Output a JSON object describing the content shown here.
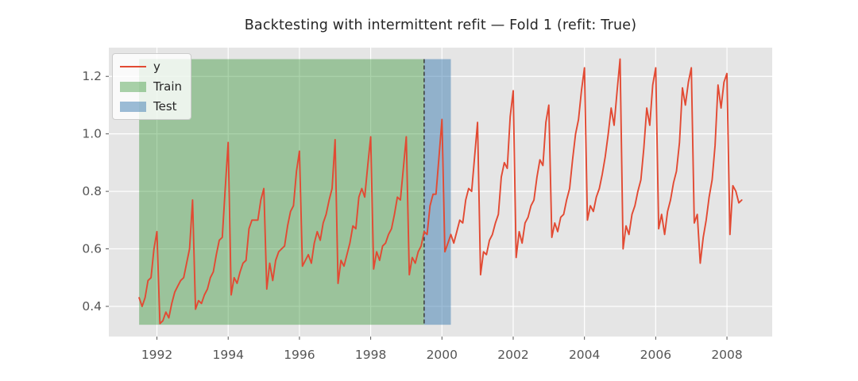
{
  "figure": {
    "title": "Backtesting with intermittent refit — Fold 1 (refit: True)"
  },
  "colors": {
    "axes_bg": "#e5e5e5",
    "grid": "#ffffff",
    "tick": "#555555",
    "tick_label": "#555555",
    "title": "#262626",
    "series_line": "#E24A33",
    "train_fill": "rgba(34,139,34,0.38)",
    "test_fill": "rgba(70,130,180,0.53)",
    "refit_line": "#3a3a3a",
    "legend_bg": "rgba(255,255,255,0.8)",
    "legend_border": "#cccccc"
  },
  "legend": {
    "items": [
      {
        "label": "y",
        "swatch": "line",
        "color": "#E24A33"
      },
      {
        "label": "Train",
        "swatch": "patch",
        "color": "rgba(34,139,34,0.38)"
      },
      {
        "label": "Test",
        "swatch": "patch",
        "color": "rgba(70,130,180,0.53)"
      }
    ]
  },
  "chart_data": {
    "type": "line",
    "title": "Backtesting with intermittent refit — Fold 1 (refit: True)",
    "xlabel": "",
    "ylabel": "",
    "grid": true,
    "legend_position": "upper-left",
    "xlim": [
      1990.65,
      2009.27
    ],
    "ylim": [
      0.295,
      1.3
    ],
    "xticks": [
      1992,
      1994,
      1996,
      1998,
      2000,
      2002,
      2004,
      2006,
      2008
    ],
    "yticks": [
      0.4,
      0.6,
      0.8,
      1.0,
      1.2
    ],
    "spans": [
      {
        "name": "Train",
        "x0": 1991.5,
        "x1": 1999.5,
        "y0": 0.336,
        "y1": 1.26
      },
      {
        "name": "Test",
        "x0": 1999.5,
        "x1": 2000.25,
        "y0": 0.336,
        "y1": 1.26
      }
    ],
    "refit_line_x": 1999.5,
    "series": [
      {
        "name": "y",
        "x_start_decimal_year": 1991.5,
        "x_step_years": 0.0833333,
        "values": [
          0.43,
          0.4,
          0.43,
          0.49,
          0.5,
          0.6,
          0.66,
          0.34,
          0.35,
          0.38,
          0.36,
          0.41,
          0.45,
          0.47,
          0.49,
          0.5,
          0.55,
          0.6,
          0.77,
          0.39,
          0.42,
          0.41,
          0.44,
          0.46,
          0.5,
          0.52,
          0.58,
          0.63,
          0.64,
          0.81,
          0.97,
          0.44,
          0.5,
          0.48,
          0.52,
          0.55,
          0.56,
          0.67,
          0.7,
          0.7,
          0.7,
          0.77,
          0.81,
          0.46,
          0.55,
          0.49,
          0.56,
          0.59,
          0.6,
          0.61,
          0.68,
          0.73,
          0.75,
          0.87,
          0.94,
          0.54,
          0.56,
          0.58,
          0.55,
          0.62,
          0.66,
          0.63,
          0.69,
          0.72,
          0.77,
          0.81,
          0.98,
          0.48,
          0.56,
          0.54,
          0.58,
          0.62,
          0.68,
          0.67,
          0.78,
          0.81,
          0.78,
          0.89,
          0.99,
          0.53,
          0.59,
          0.56,
          0.61,
          0.62,
          0.65,
          0.67,
          0.72,
          0.78,
          0.77,
          0.88,
          0.99,
          0.51,
          0.57,
          0.55,
          0.59,
          0.61,
          0.66,
          0.65,
          0.75,
          0.79,
          0.79,
          0.92,
          1.05,
          0.59,
          0.62,
          0.65,
          0.62,
          0.66,
          0.7,
          0.69,
          0.77,
          0.81,
          0.8,
          0.92,
          1.04,
          0.51,
          0.59,
          0.58,
          0.63,
          0.65,
          0.69,
          0.72,
          0.85,
          0.9,
          0.88,
          1.06,
          1.15,
          0.57,
          0.66,
          0.62,
          0.69,
          0.71,
          0.75,
          0.77,
          0.85,
          0.91,
          0.89,
          1.04,
          1.1,
          0.64,
          0.69,
          0.66,
          0.71,
          0.72,
          0.77,
          0.81,
          0.91,
          1.0,
          1.05,
          1.15,
          1.23,
          0.7,
          0.75,
          0.73,
          0.78,
          0.81,
          0.86,
          0.92,
          1.0,
          1.09,
          1.03,
          1.15,
          1.26,
          0.6,
          0.68,
          0.65,
          0.72,
          0.75,
          0.8,
          0.84,
          0.95,
          1.09,
          1.03,
          1.17,
          1.23,
          0.67,
          0.72,
          0.65,
          0.73,
          0.77,
          0.83,
          0.87,
          0.97,
          1.16,
          1.1,
          1.18,
          1.23,
          0.69,
          0.72,
          0.55,
          0.64,
          0.7,
          0.78,
          0.84,
          0.96,
          1.17,
          1.09,
          1.18,
          1.21,
          0.65,
          0.82,
          0.8,
          0.76,
          0.77
        ]
      }
    ]
  }
}
